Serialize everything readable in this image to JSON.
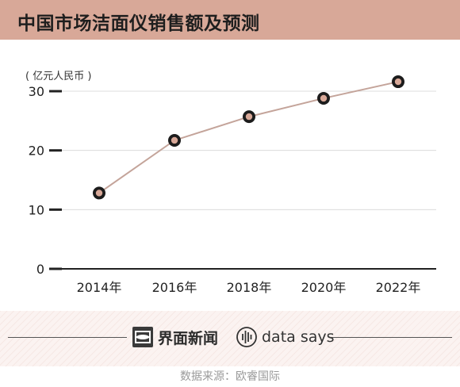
{
  "chart_data": {
    "type": "line",
    "title": "中国市场洁面仪销售额及预测",
    "unit_label": "( 亿元人民币 )",
    "categories": [
      "2014年",
      "2016年",
      "2018年",
      "2020年",
      "2022年"
    ],
    "series": [
      {
        "values": [
          12.8,
          21.7,
          25.7,
          28.8,
          31.6
        ]
      }
    ],
    "yticks": [
      0,
      10,
      20,
      30
    ],
    "ylim": [
      0,
      32
    ],
    "grid": true,
    "colors": {
      "line": "#c4a49a",
      "marker_outer": "#1c1c1c",
      "marker_inner": "#d8a898",
      "grid": "#dcdcdc",
      "axis": "#222222"
    }
  },
  "header": {
    "title": "中国市场洁面仪销售额及预测"
  },
  "footer": {
    "brand_a": "界面新闻",
    "brand_b": "data says",
    "source": "数据来源：欧睿国际"
  }
}
